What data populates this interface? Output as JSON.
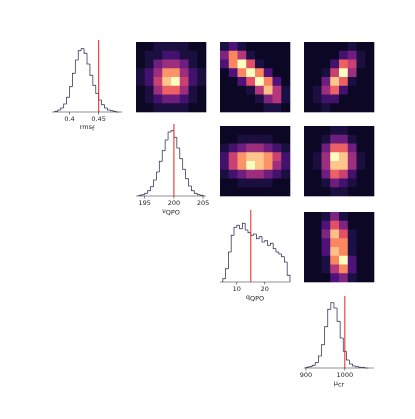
{
  "chart_data": [
    {
      "type": "histogram",
      "xlabel": {
        "text": "rms",
        "sub": "f"
      },
      "color": "#3b3b5c",
      "truth": 0.45,
      "truth_color": "#e8201c",
      "xlim": [
        0.37,
        0.49
      ],
      "xticks": [
        0.4,
        0.45
      ],
      "ylim": [
        0,
        105
      ],
      "bins": [
        0.375,
        0.38,
        0.385,
        0.39,
        0.395,
        0.4,
        0.405,
        0.41,
        0.415,
        0.42,
        0.425,
        0.43,
        0.435,
        0.44,
        0.445,
        0.45,
        0.455,
        0.46,
        0.465,
        0.47,
        0.475,
        0.48,
        0.485
      ],
      "counts": [
        1,
        3,
        6,
        12,
        22,
        38,
        58,
        78,
        92,
        95,
        88,
        72,
        55,
        40,
        28,
        18,
        11,
        6,
        3,
        2,
        1,
        0
      ]
    },
    {
      "type": "heatmap",
      "colormap": "magma",
      "grid": [
        [
          0,
          0,
          1,
          1,
          1,
          1,
          0,
          0
        ],
        [
          0,
          1,
          1,
          2,
          2,
          1,
          1,
          0
        ],
        [
          0,
          1,
          3,
          4,
          4,
          3,
          1,
          0
        ],
        [
          1,
          2,
          4,
          7,
          7,
          4,
          2,
          1
        ],
        [
          1,
          2,
          5,
          8,
          9,
          5,
          2,
          1
        ],
        [
          0,
          1,
          4,
          6,
          6,
          4,
          1,
          0
        ],
        [
          0,
          1,
          2,
          3,
          3,
          2,
          1,
          0
        ],
        [
          0,
          0,
          1,
          1,
          1,
          1,
          0,
          0
        ]
      ]
    },
    {
      "type": "heatmap",
      "colormap": "magma",
      "grid": [
        [
          1,
          2,
          1,
          0,
          0,
          0,
          0,
          0
        ],
        [
          3,
          6,
          4,
          1,
          0,
          0,
          0,
          0
        ],
        [
          2,
          6,
          8,
          5,
          1,
          0,
          0,
          0
        ],
        [
          0,
          2,
          6,
          8,
          6,
          2,
          0,
          0
        ],
        [
          0,
          0,
          2,
          5,
          8,
          6,
          2,
          0
        ],
        [
          0,
          0,
          0,
          1,
          4,
          7,
          4,
          1
        ],
        [
          0,
          0,
          0,
          0,
          1,
          3,
          4,
          1
        ],
        [
          0,
          0,
          0,
          0,
          0,
          1,
          1,
          0
        ]
      ]
    },
    {
      "type": "heatmap",
      "colormap": "magma",
      "grid": [
        [
          0,
          0,
          0,
          0,
          0,
          1,
          0,
          0
        ],
        [
          0,
          0,
          0,
          0,
          2,
          3,
          1,
          0
        ],
        [
          0,
          0,
          0,
          2,
          6,
          5,
          1,
          0
        ],
        [
          0,
          0,
          1,
          5,
          9,
          4,
          0,
          0
        ],
        [
          0,
          0,
          3,
          8,
          6,
          1,
          0,
          0
        ],
        [
          0,
          1,
          4,
          6,
          2,
          0,
          0,
          0
        ],
        [
          0,
          1,
          2,
          2,
          0,
          0,
          0,
          0
        ],
        [
          0,
          0,
          1,
          0,
          0,
          0,
          0,
          0
        ]
      ]
    },
    {
      "type": "histogram",
      "xlabel": {
        "text": "ν",
        "sub": "QPO"
      },
      "color": "#3b3b5c",
      "truth": 200,
      "truth_color": "#e8201c",
      "xlim": [
        193.5,
        205.5
      ],
      "xticks": [
        195,
        200,
        205
      ],
      "ylim": [
        0,
        105
      ],
      "bins": [
        194,
        194.5,
        195,
        195.5,
        196,
        196.5,
        197,
        197.5,
        198,
        198.5,
        199,
        199.5,
        200,
        200.5,
        201,
        201.5,
        202,
        202.5,
        203,
        203.5,
        204,
        204.5,
        205
      ],
      "counts": [
        1,
        2,
        4,
        8,
        14,
        24,
        36,
        52,
        68,
        84,
        96,
        98,
        88,
        72,
        56,
        40,
        26,
        15,
        8,
        4,
        2,
        1
      ]
    },
    {
      "type": "heatmap",
      "colormap": "magma",
      "grid": [
        [
          0,
          0,
          0,
          0,
          0,
          0,
          0,
          0
        ],
        [
          0,
          0,
          1,
          1,
          1,
          1,
          0,
          0
        ],
        [
          1,
          2,
          3,
          4,
          4,
          3,
          2,
          1
        ],
        [
          2,
          5,
          7,
          8,
          8,
          7,
          5,
          2
        ],
        [
          2,
          5,
          7,
          9,
          8,
          7,
          4,
          2
        ],
        [
          1,
          2,
          3,
          4,
          4,
          3,
          2,
          1
        ],
        [
          0,
          0,
          1,
          1,
          1,
          1,
          0,
          0
        ],
        [
          0,
          0,
          0,
          0,
          0,
          0,
          0,
          0
        ]
      ]
    },
    {
      "type": "heatmap",
      "colormap": "magma",
      "grid": [
        [
          0,
          0,
          0,
          1,
          1,
          0,
          0,
          0
        ],
        [
          0,
          0,
          1,
          3,
          3,
          1,
          0,
          0
        ],
        [
          0,
          0,
          3,
          6,
          6,
          3,
          0,
          0
        ],
        [
          0,
          1,
          4,
          9,
          8,
          4,
          1,
          0
        ],
        [
          0,
          1,
          4,
          8,
          8,
          4,
          1,
          0
        ],
        [
          0,
          0,
          3,
          6,
          5,
          2,
          0,
          0
        ],
        [
          0,
          0,
          1,
          3,
          2,
          1,
          0,
          0
        ],
        [
          0,
          0,
          0,
          1,
          1,
          0,
          0,
          0
        ]
      ]
    },
    {
      "type": "histogram",
      "xlabel": {
        "text": "q",
        "sub": "QPO"
      },
      "color": "#3b3b5c",
      "truth": 15,
      "truth_color": "#e8201c",
      "xlim": [
        4,
        29
      ],
      "xticks": [
        10,
        20
      ],
      "ylim": [
        0,
        105
      ],
      "bins": [
        5,
        6,
        7,
        8,
        9,
        10,
        11,
        12,
        13,
        14,
        15,
        16,
        17,
        18,
        19,
        20,
        21,
        22,
        23,
        24,
        25,
        26,
        27,
        28,
        29
      ],
      "counts": [
        5,
        20,
        45,
        70,
        82,
        85,
        80,
        88,
        78,
        74,
        70,
        72,
        65,
        68,
        60,
        62,
        55,
        58,
        50,
        45,
        42,
        38,
        30,
        10
      ]
    },
    {
      "type": "heatmap",
      "colormap": "magma",
      "grid": [
        [
          0,
          0,
          1,
          3,
          1,
          0,
          0,
          0
        ],
        [
          0,
          0,
          2,
          5,
          3,
          0,
          0,
          0
        ],
        [
          0,
          0,
          3,
          7,
          5,
          1,
          0,
          0
        ],
        [
          0,
          0,
          2,
          6,
          6,
          1,
          0,
          0
        ],
        [
          0,
          0,
          2,
          7,
          6,
          1,
          0,
          0
        ],
        [
          0,
          0,
          1,
          6,
          8,
          2,
          0,
          0
        ],
        [
          0,
          0,
          1,
          4,
          6,
          2,
          0,
          0
        ],
        [
          0,
          0,
          0,
          2,
          3,
          1,
          0,
          0
        ]
      ]
    },
    {
      "type": "histogram",
      "xlabel": {
        "text": "μ",
        "sub": "cr"
      },
      "color": "#3b3b5c",
      "truth": 1000,
      "truth_color": "#e8201c",
      "xlim": [
        895,
        1075
      ],
      "xticks": [
        900,
        1000
      ],
      "ylim": [
        0,
        105
      ],
      "bins": [
        900,
        908,
        916,
        924,
        932,
        940,
        948,
        956,
        964,
        972,
        980,
        988,
        996,
        1004,
        1012,
        1020,
        1028,
        1036,
        1044,
        1052,
        1060
      ],
      "counts": [
        1,
        2,
        4,
        8,
        18,
        35,
        62,
        88,
        98,
        90,
        70,
        45,
        25,
        12,
        6,
        3,
        2,
        1,
        1,
        0
      ]
    }
  ]
}
